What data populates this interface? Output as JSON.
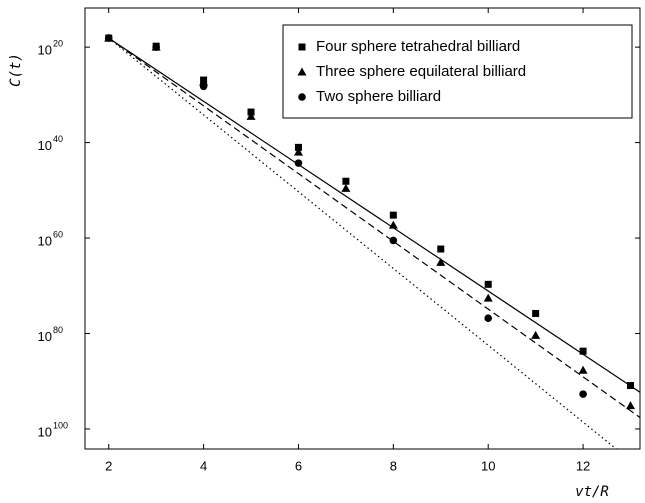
{
  "chart_data": {
    "type": "scatter",
    "xlabel": "vt/R",
    "ylabel": "C(t)",
    "xlim": [
      1.5,
      13.2
    ],
    "xticks": [
      2,
      4,
      6,
      8,
      10,
      12
    ],
    "ylim": [
      11.8,
      104.2
    ],
    "y_inverted": true,
    "yticks": [
      {
        "value": 20,
        "label": "10"
      },
      {
        "value": 40,
        "label": "10"
      },
      {
        "value": 60,
        "label": "10"
      },
      {
        "value": 80,
        "label": "10"
      },
      {
        "value": 100,
        "label": "10"
      }
    ],
    "legend": "upper right",
    "series": [
      {
        "name": "Four sphere tetrahedral billiard",
        "marker": "square",
        "color": "#000000",
        "x": [
          2,
          3,
          4,
          5,
          6,
          7,
          8,
          9,
          10,
          11,
          12,
          13
        ],
        "values": [
          18.1,
          19.8,
          26.9,
          33.6,
          41,
          48.1,
          55.2,
          62.3,
          69.7,
          75.8,
          83.7,
          90.9
        ]
      },
      {
        "name": "Three sphere equilateral billiard",
        "marker": "triangle",
        "color": "#000000",
        "x": [
          2,
          3,
          4,
          5,
          6,
          7,
          8,
          9,
          10,
          11,
          12,
          13
        ],
        "values": [
          18.1,
          20,
          27.3,
          34.5,
          42,
          49.6,
          57.3,
          65.1,
          72.6,
          80.4,
          87.7,
          95.1
        ]
      },
      {
        "name": "Two sphere billiard",
        "marker": "circle",
        "color": "#000000",
        "x": [
          2,
          3,
          4,
          6,
          8,
          10,
          12
        ],
        "values": [
          18.1,
          20,
          28.2,
          44.3,
          60.5,
          76.8,
          92.7
        ]
      }
    ],
    "fits": [
      {
        "dash": "solid",
        "x": [
          2,
          13.2
        ],
        "values": [
          18.1,
          92.3
        ]
      },
      {
        "dash": "dashed",
        "x": [
          2,
          13.2
        ],
        "values": [
          18.1,
          97.6
        ]
      },
      {
        "dash": "dotted",
        "x": [
          2,
          12.7
        ],
        "values": [
          18.1,
          104.2
        ]
      }
    ]
  }
}
